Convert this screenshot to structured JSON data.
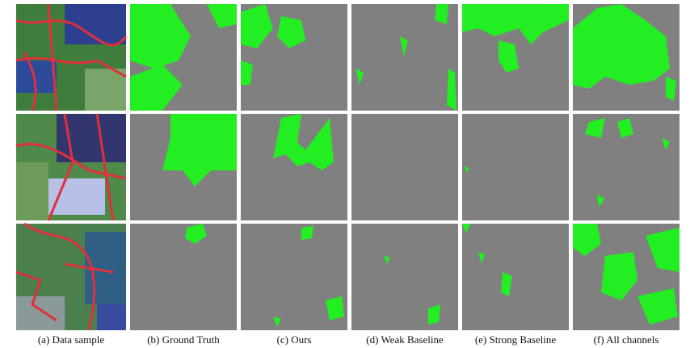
{
  "captions": [
    "(a) Data sample",
    "(b) Ground Truth",
    "(c) Ours",
    "(d) Weak Baseline",
    "(e) Strong Baseline",
    "(f) All channels"
  ]
}
